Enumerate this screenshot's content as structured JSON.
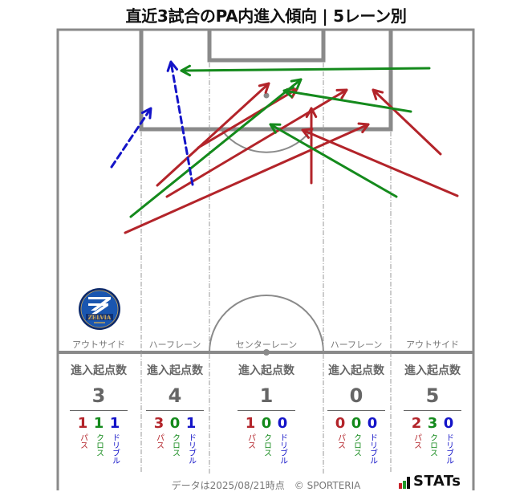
{
  "title": "直近3試合のPA内進入傾向 | 5レーン別",
  "colors": {
    "pass": "#b3242a",
    "cross": "#148a1c",
    "dribble": "#1414c8",
    "pitch_line": "#8a8a8a",
    "text_gray": "#666666"
  },
  "club_logo": {
    "name": "ZELVIA",
    "icon": "club-crest-icon"
  },
  "lanes": [
    {
      "label": "アウトサイド",
      "stat_title": "進入起点数",
      "total": "3",
      "pass": "1",
      "cross": "1",
      "dribble": "1"
    },
    {
      "label": "ハーフレーン",
      "stat_title": "進入起点数",
      "total": "4",
      "pass": "3",
      "cross": "0",
      "dribble": "1"
    },
    {
      "label": "センターレーン",
      "stat_title": "進入起点数",
      "total": "1",
      "pass": "1",
      "cross": "0",
      "dribble": "0"
    },
    {
      "label": "ハーフレーン",
      "stat_title": "進入起点数",
      "total": "0",
      "pass": "0",
      "cross": "0",
      "dribble": "0"
    },
    {
      "label": "アウトサイド",
      "stat_title": "進入起点数",
      "total": "5",
      "pass": "2",
      "cross": "3",
      "dribble": "0"
    }
  ],
  "type_labels": {
    "pass": "パス",
    "cross": "クロス",
    "dribble": "ドリブル"
  },
  "footer": "データは2025/08/21時点　© SPORTERIA",
  "brand": {
    "text": "STATs",
    "bar_colors": [
      "#c8232a",
      "#1f9a2a",
      "#111111"
    ]
  },
  "chart_data": {
    "type": "table",
    "title": "直近3試合のPA内進入傾向 | 5レーン別",
    "columns": [
      "レーン",
      "進入起点数",
      "パス",
      "クロス",
      "ドリブル"
    ],
    "rows": [
      [
        "アウトサイド(左)",
        3,
        1,
        1,
        1
      ],
      [
        "ハーフレーン(左)",
        4,
        3,
        0,
        1
      ],
      [
        "センターレーン",
        1,
        1,
        0,
        0
      ],
      [
        "ハーフレーン(右)",
        0,
        0,
        0,
        0
      ],
      [
        "アウトサイド(右)",
        5,
        2,
        3,
        0
      ]
    ],
    "legend": [
      "パス",
      "クロス",
      "ドリブル"
    ],
    "arrows": [
      {
        "type": "pass",
        "from": [
          196,
          231
        ],
        "to": [
          335,
          104
        ]
      },
      {
        "type": "pass",
        "from": [
          247,
          184
        ],
        "to": [
          370,
          111
        ]
      },
      {
        "type": "pass",
        "from": [
          208,
          245
        ],
        "to": [
          432,
          112
        ]
      },
      {
        "type": "pass",
        "from": [
          156,
          290
        ],
        "to": [
          459,
          155
        ]
      },
      {
        "type": "pass",
        "from": [
          388,
          228
        ],
        "to": [
          388,
          135
        ]
      },
      {
        "type": "pass",
        "from": [
          549,
          192
        ],
        "to": [
          465,
          112
        ]
      },
      {
        "type": "pass",
        "from": [
          570,
          244
        ],
        "to": [
          377,
          162
        ]
      },
      {
        "type": "cross",
        "from": [
          535,
          85
        ],
        "to": [
          226,
          88
        ]
      },
      {
        "type": "cross",
        "from": [
          163,
          270
        ],
        "to": [
          375,
          99
        ]
      },
      {
        "type": "cross",
        "from": [
          512,
          139
        ],
        "to": [
          354,
          113
        ]
      },
      {
        "type": "cross",
        "from": [
          494,
          245
        ],
        "to": [
          337,
          155
        ]
      },
      {
        "type": "dribble",
        "from": [
          139,
          208
        ],
        "to": [
          188,
          135
        ]
      },
      {
        "type": "dribble",
        "from": [
          240,
          230
        ],
        "to": [
          213,
          77
        ]
      }
    ]
  }
}
